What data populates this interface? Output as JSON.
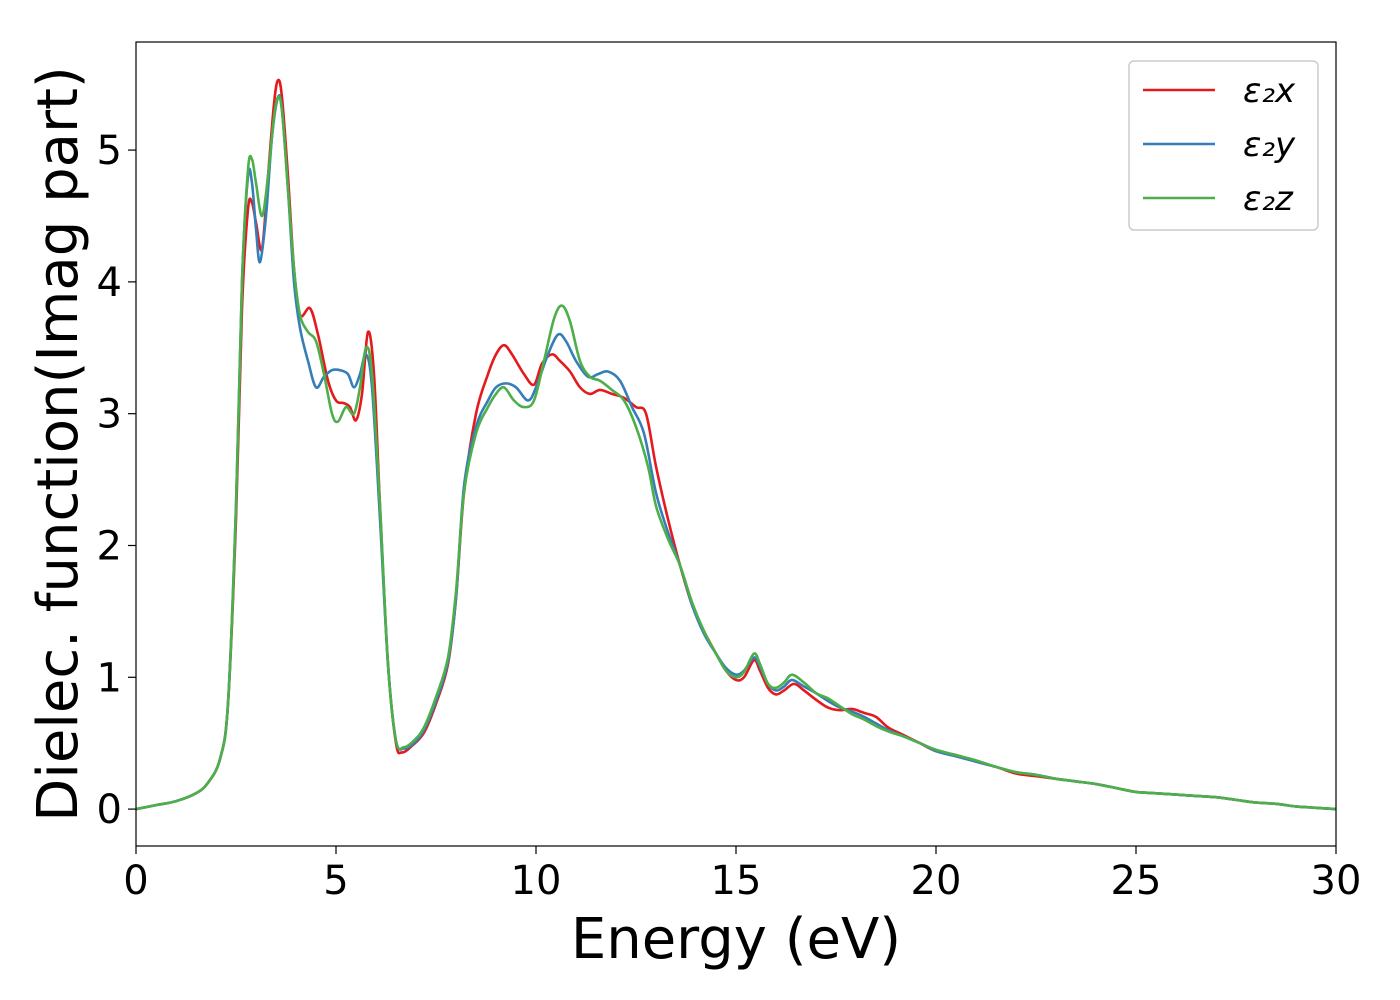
{
  "chart_data": {
    "type": "line",
    "title": "",
    "xlabel": "Energy (eV)",
    "ylabel": "Dielec. function(Imag part)",
    "xlim": [
      0,
      30
    ],
    "ylim": [
      -0.28,
      5.82
    ],
    "xticks": [
      0,
      5,
      10,
      15,
      20,
      25,
      30
    ],
    "yticks": [
      0,
      1,
      2,
      3,
      4,
      5
    ],
    "grid": false,
    "legend_position": "top-right",
    "series": [
      {
        "name": "ε₂x",
        "color": "#e41a1c",
        "points": [
          [
            0,
            0
          ],
          [
            0.5,
            0.03
          ],
          [
            1,
            0.06
          ],
          [
            1.5,
            0.12
          ],
          [
            1.8,
            0.2
          ],
          [
            2.1,
            0.38
          ],
          [
            2.3,
            0.8
          ],
          [
            2.5,
            2.2
          ],
          [
            2.65,
            3.8
          ],
          [
            2.8,
            4.55
          ],
          [
            2.9,
            4.6
          ],
          [
            3.0,
            4.45
          ],
          [
            3.15,
            4.25
          ],
          [
            3.3,
            4.8
          ],
          [
            3.45,
            5.35
          ],
          [
            3.55,
            5.53
          ],
          [
            3.65,
            5.4
          ],
          [
            3.8,
            4.8
          ],
          [
            3.95,
            4.1
          ],
          [
            4.1,
            3.75
          ],
          [
            4.35,
            3.8
          ],
          [
            4.55,
            3.6
          ],
          [
            4.8,
            3.25
          ],
          [
            5.0,
            3.1
          ],
          [
            5.2,
            3.08
          ],
          [
            5.35,
            3.05
          ],
          [
            5.5,
            2.95
          ],
          [
            5.65,
            3.15
          ],
          [
            5.8,
            3.62
          ],
          [
            5.95,
            3.3
          ],
          [
            6.1,
            2.3
          ],
          [
            6.3,
            1.1
          ],
          [
            6.5,
            0.5
          ],
          [
            6.65,
            0.43
          ],
          [
            6.9,
            0.48
          ],
          [
            7.2,
            0.58
          ],
          [
            7.5,
            0.8
          ],
          [
            7.8,
            1.1
          ],
          [
            8.0,
            1.6
          ],
          [
            8.2,
            2.4
          ],
          [
            8.5,
            3.0
          ],
          [
            8.8,
            3.3
          ],
          [
            9.0,
            3.45
          ],
          [
            9.2,
            3.52
          ],
          [
            9.4,
            3.45
          ],
          [
            9.7,
            3.3
          ],
          [
            9.95,
            3.22
          ],
          [
            10.15,
            3.38
          ],
          [
            10.4,
            3.45
          ],
          [
            10.6,
            3.4
          ],
          [
            10.85,
            3.32
          ],
          [
            11.1,
            3.2
          ],
          [
            11.35,
            3.15
          ],
          [
            11.6,
            3.18
          ],
          [
            11.9,
            3.15
          ],
          [
            12.2,
            3.12
          ],
          [
            12.5,
            3.05
          ],
          [
            12.75,
            3.0
          ],
          [
            13.0,
            2.6
          ],
          [
            13.3,
            2.2
          ],
          [
            13.6,
            1.85
          ],
          [
            13.9,
            1.55
          ],
          [
            14.2,
            1.35
          ],
          [
            14.5,
            1.18
          ],
          [
            14.75,
            1.05
          ],
          [
            15.0,
            0.98
          ],
          [
            15.2,
            1.0
          ],
          [
            15.45,
            1.13
          ],
          [
            15.6,
            1.05
          ],
          [
            15.8,
            0.92
          ],
          [
            16.0,
            0.87
          ],
          [
            16.2,
            0.9
          ],
          [
            16.45,
            0.95
          ],
          [
            16.7,
            0.9
          ],
          [
            17.0,
            0.83
          ],
          [
            17.3,
            0.77
          ],
          [
            17.6,
            0.75
          ],
          [
            17.9,
            0.76
          ],
          [
            18.2,
            0.73
          ],
          [
            18.5,
            0.7
          ],
          [
            18.8,
            0.62
          ],
          [
            19.2,
            0.56
          ],
          [
            19.6,
            0.5
          ],
          [
            20.0,
            0.44
          ],
          [
            20.5,
            0.41
          ],
          [
            21.0,
            0.36
          ],
          [
            21.5,
            0.32
          ],
          [
            22.0,
            0.27
          ],
          [
            22.5,
            0.25
          ],
          [
            23.0,
            0.23
          ],
          [
            23.5,
            0.21
          ],
          [
            24.0,
            0.19
          ],
          [
            24.5,
            0.16
          ],
          [
            25.0,
            0.13
          ],
          [
            25.5,
            0.12
          ],
          [
            26.0,
            0.11
          ],
          [
            26.5,
            0.1
          ],
          [
            27.0,
            0.09
          ],
          [
            27.5,
            0.07
          ],
          [
            28.0,
            0.05
          ],
          [
            28.5,
            0.04
          ],
          [
            29.0,
            0.02
          ],
          [
            29.5,
            0.01
          ],
          [
            30.0,
            0.0
          ]
        ]
      },
      {
        "name": "ε₂y",
        "color": "#377eb8",
        "points": [
          [
            0,
            0
          ],
          [
            0.5,
            0.03
          ],
          [
            1,
            0.06
          ],
          [
            1.5,
            0.12
          ],
          [
            1.8,
            0.2
          ],
          [
            2.1,
            0.38
          ],
          [
            2.3,
            0.8
          ],
          [
            2.5,
            2.3
          ],
          [
            2.65,
            4.0
          ],
          [
            2.8,
            4.8
          ],
          [
            2.9,
            4.75
          ],
          [
            3.0,
            4.4
          ],
          [
            3.1,
            4.15
          ],
          [
            3.25,
            4.5
          ],
          [
            3.4,
            5.1
          ],
          [
            3.55,
            5.4
          ],
          [
            3.65,
            5.3
          ],
          [
            3.8,
            4.7
          ],
          [
            3.95,
            4.0
          ],
          [
            4.1,
            3.65
          ],
          [
            4.3,
            3.4
          ],
          [
            4.5,
            3.2
          ],
          [
            4.7,
            3.28
          ],
          [
            4.9,
            3.33
          ],
          [
            5.1,
            3.33
          ],
          [
            5.3,
            3.3
          ],
          [
            5.45,
            3.2
          ],
          [
            5.6,
            3.3
          ],
          [
            5.75,
            3.45
          ],
          [
            5.9,
            3.2
          ],
          [
            6.1,
            2.2
          ],
          [
            6.3,
            1.1
          ],
          [
            6.5,
            0.52
          ],
          [
            6.7,
            0.46
          ],
          [
            6.95,
            0.5
          ],
          [
            7.2,
            0.6
          ],
          [
            7.5,
            0.82
          ],
          [
            7.8,
            1.12
          ],
          [
            8.0,
            1.6
          ],
          [
            8.2,
            2.45
          ],
          [
            8.5,
            2.9
          ],
          [
            8.8,
            3.1
          ],
          [
            9.0,
            3.2
          ],
          [
            9.25,
            3.23
          ],
          [
            9.5,
            3.2
          ],
          [
            9.8,
            3.1
          ],
          [
            10.0,
            3.2
          ],
          [
            10.3,
            3.45
          ],
          [
            10.55,
            3.6
          ],
          [
            10.75,
            3.55
          ],
          [
            11.0,
            3.4
          ],
          [
            11.3,
            3.28
          ],
          [
            11.55,
            3.3
          ],
          [
            11.8,
            3.32
          ],
          [
            12.1,
            3.25
          ],
          [
            12.4,
            3.05
          ],
          [
            12.7,
            2.85
          ],
          [
            13.0,
            2.4
          ],
          [
            13.3,
            2.1
          ],
          [
            13.6,
            1.85
          ],
          [
            13.9,
            1.55
          ],
          [
            14.2,
            1.33
          ],
          [
            14.5,
            1.18
          ],
          [
            14.75,
            1.07
          ],
          [
            15.0,
            1.02
          ],
          [
            15.2,
            1.05
          ],
          [
            15.45,
            1.15
          ],
          [
            15.6,
            1.08
          ],
          [
            15.8,
            0.95
          ],
          [
            16.0,
            0.9
          ],
          [
            16.2,
            0.93
          ],
          [
            16.4,
            0.98
          ],
          [
            16.7,
            0.93
          ],
          [
            17.0,
            0.88
          ],
          [
            17.3,
            0.82
          ],
          [
            17.6,
            0.77
          ],
          [
            17.9,
            0.74
          ],
          [
            18.2,
            0.7
          ],
          [
            18.5,
            0.65
          ],
          [
            18.8,
            0.6
          ],
          [
            19.2,
            0.55
          ],
          [
            19.6,
            0.5
          ],
          [
            20.0,
            0.44
          ],
          [
            20.5,
            0.4
          ],
          [
            21.0,
            0.36
          ],
          [
            21.5,
            0.32
          ],
          [
            22.0,
            0.28
          ],
          [
            22.5,
            0.26
          ],
          [
            23.0,
            0.23
          ],
          [
            23.5,
            0.21
          ],
          [
            24.0,
            0.19
          ],
          [
            24.5,
            0.16
          ],
          [
            25.0,
            0.13
          ],
          [
            25.5,
            0.12
          ],
          [
            26.0,
            0.11
          ],
          [
            26.5,
            0.1
          ],
          [
            27.0,
            0.09
          ],
          [
            27.5,
            0.07
          ],
          [
            28.0,
            0.05
          ],
          [
            28.5,
            0.04
          ],
          [
            29.0,
            0.02
          ],
          [
            29.5,
            0.01
          ],
          [
            30.0,
            0.0
          ]
        ]
      },
      {
        "name": "ε₂z",
        "color": "#4daf4a",
        "points": [
          [
            0,
            0
          ],
          [
            0.5,
            0.03
          ],
          [
            1,
            0.06
          ],
          [
            1.5,
            0.12
          ],
          [
            1.8,
            0.2
          ],
          [
            2.1,
            0.38
          ],
          [
            2.3,
            0.8
          ],
          [
            2.5,
            2.3
          ],
          [
            2.65,
            4.0
          ],
          [
            2.8,
            4.85
          ],
          [
            2.9,
            4.93
          ],
          [
            3.0,
            4.75
          ],
          [
            3.15,
            4.5
          ],
          [
            3.3,
            4.8
          ],
          [
            3.45,
            5.25
          ],
          [
            3.55,
            5.4
          ],
          [
            3.65,
            5.3
          ],
          [
            3.8,
            4.7
          ],
          [
            3.95,
            4.1
          ],
          [
            4.1,
            3.75
          ],
          [
            4.3,
            3.62
          ],
          [
            4.5,
            3.55
          ],
          [
            4.7,
            3.3
          ],
          [
            4.9,
            3.0
          ],
          [
            5.05,
            2.94
          ],
          [
            5.25,
            3.05
          ],
          [
            5.45,
            3.0
          ],
          [
            5.6,
            3.2
          ],
          [
            5.75,
            3.5
          ],
          [
            5.9,
            3.3
          ],
          [
            6.1,
            2.3
          ],
          [
            6.3,
            1.1
          ],
          [
            6.5,
            0.52
          ],
          [
            6.7,
            0.47
          ],
          [
            6.95,
            0.52
          ],
          [
            7.2,
            0.62
          ],
          [
            7.5,
            0.85
          ],
          [
            7.8,
            1.15
          ],
          [
            8.0,
            1.65
          ],
          [
            8.2,
            2.4
          ],
          [
            8.5,
            2.85
          ],
          [
            8.8,
            3.05
          ],
          [
            9.0,
            3.15
          ],
          [
            9.2,
            3.2
          ],
          [
            9.45,
            3.1
          ],
          [
            9.7,
            3.05
          ],
          [
            9.95,
            3.1
          ],
          [
            10.2,
            3.4
          ],
          [
            10.45,
            3.72
          ],
          [
            10.65,
            3.82
          ],
          [
            10.85,
            3.7
          ],
          [
            11.1,
            3.4
          ],
          [
            11.35,
            3.28
          ],
          [
            11.6,
            3.25
          ],
          [
            11.9,
            3.18
          ],
          [
            12.2,
            3.1
          ],
          [
            12.5,
            2.9
          ],
          [
            12.8,
            2.6
          ],
          [
            13.0,
            2.3
          ],
          [
            13.3,
            2.05
          ],
          [
            13.6,
            1.85
          ],
          [
            13.9,
            1.57
          ],
          [
            14.2,
            1.35
          ],
          [
            14.5,
            1.18
          ],
          [
            14.75,
            1.05
          ],
          [
            15.0,
            1.0
          ],
          [
            15.2,
            1.04
          ],
          [
            15.45,
            1.18
          ],
          [
            15.6,
            1.1
          ],
          [
            15.8,
            0.95
          ],
          [
            16.0,
            0.92
          ],
          [
            16.2,
            0.96
          ],
          [
            16.4,
            1.02
          ],
          [
            16.7,
            0.96
          ],
          [
            17.0,
            0.88
          ],
          [
            17.3,
            0.84
          ],
          [
            17.6,
            0.78
          ],
          [
            17.9,
            0.72
          ],
          [
            18.2,
            0.68
          ],
          [
            18.5,
            0.63
          ],
          [
            18.8,
            0.59
          ],
          [
            19.2,
            0.55
          ],
          [
            19.6,
            0.5
          ],
          [
            20.0,
            0.45
          ],
          [
            20.5,
            0.41
          ],
          [
            21.0,
            0.37
          ],
          [
            21.5,
            0.32
          ],
          [
            22.0,
            0.28
          ],
          [
            22.5,
            0.26
          ],
          [
            23.0,
            0.23
          ],
          [
            23.5,
            0.21
          ],
          [
            24.0,
            0.19
          ],
          [
            24.5,
            0.16
          ],
          [
            25.0,
            0.13
          ],
          [
            25.5,
            0.12
          ],
          [
            26.0,
            0.11
          ],
          [
            26.5,
            0.1
          ],
          [
            27.0,
            0.09
          ],
          [
            27.5,
            0.07
          ],
          [
            28.0,
            0.05
          ],
          [
            28.5,
            0.04
          ],
          [
            29.0,
            0.02
          ],
          [
            29.5,
            0.01
          ],
          [
            30.0,
            0.0
          ]
        ]
      }
    ]
  }
}
